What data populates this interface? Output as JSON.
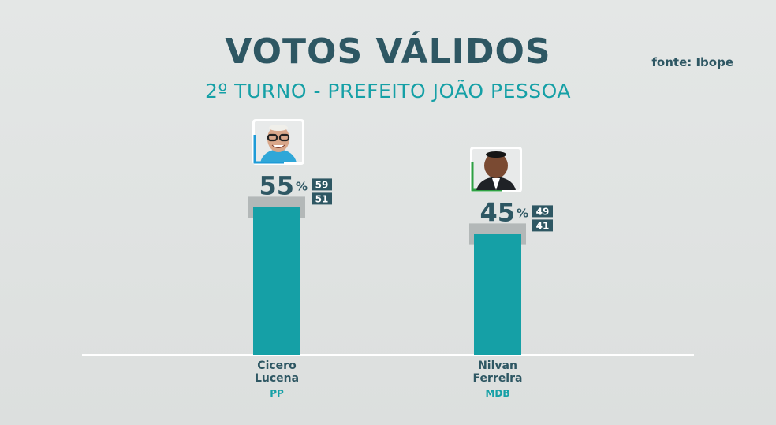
{
  "header": {
    "title": "VOTOS VÁLIDOS",
    "subtitle": "2º TURNO - PREFEITO JOÃO PESSOA",
    "source": "fonte: Ibope"
  },
  "colors": {
    "bar": "#15a0a6",
    "range_band": "#aeb2b4",
    "label_box": "#2e5763",
    "text_dark": "#2e5763",
    "accent": "#15a0a6",
    "photo_border_1": "#1e9bd7",
    "photo_border_2": "#2ea043"
  },
  "chart_data": {
    "type": "bar",
    "categories": [
      "Cicero Lucena",
      "Nilvan Ferreira"
    ],
    "values": [
      55,
      45
    ],
    "unit": "%",
    "ranges": [
      [
        51,
        59
      ],
      [
        41,
        49
      ]
    ],
    "parties": [
      "PP",
      "MDB"
    ],
    "ylim": [
      0,
      70
    ],
    "grid": false,
    "legend": "none"
  },
  "candidates": [
    {
      "first": "Cicero",
      "last": "Lucena",
      "party": "PP"
    },
    {
      "first": "Nilvan",
      "last": "Ferreira",
      "party": "MDB"
    }
  ]
}
